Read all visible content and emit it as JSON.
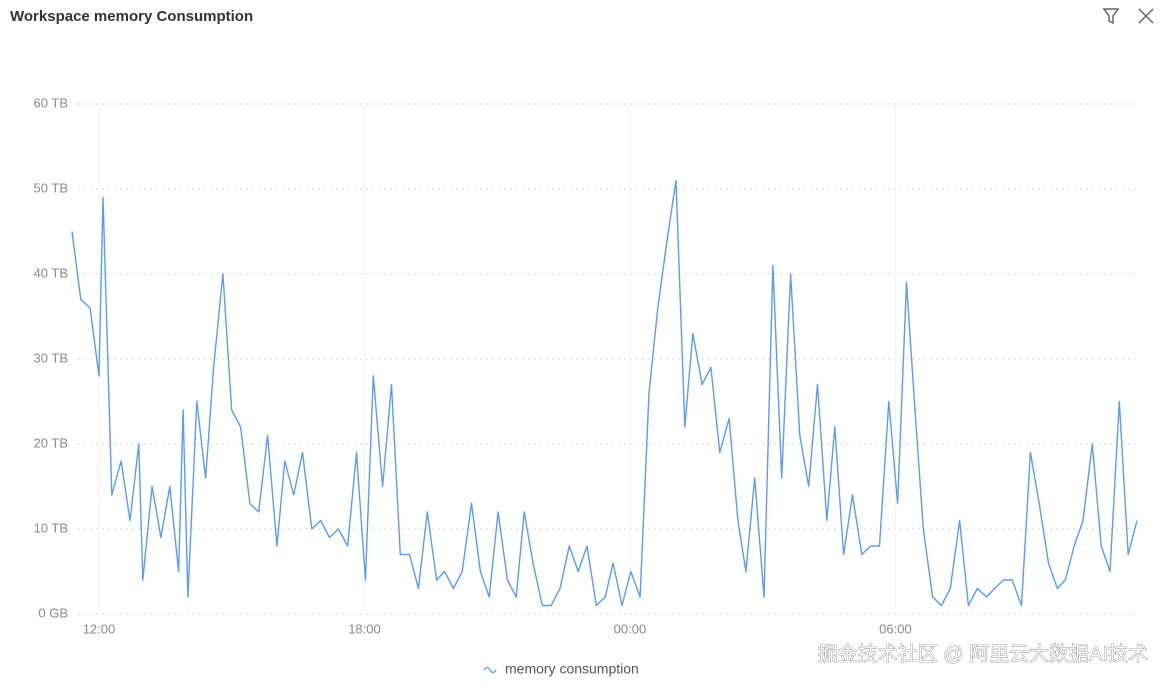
{
  "chart_data": {
    "type": "line",
    "title": "Workspace memory Consumption",
    "watermark": "掘金技术社区 @ 阿里云大数据AI技术",
    "x": [
      11.39,
      11.59,
      11.8,
      12.0,
      12.09,
      12.2,
      12.29,
      12.5,
      12.7,
      12.9,
      12.99,
      13.2,
      13.4,
      13.6,
      13.8,
      13.9,
      14.01,
      14.21,
      14.41,
      14.59,
      14.8,
      15.0,
      15.2,
      15.41,
      15.61,
      15.81,
      16.02,
      16.2,
      16.4,
      16.6,
      16.81,
      17.01,
      17.21,
      17.41,
      17.62,
      17.82,
      18.02,
      18.2,
      18.41,
      18.61,
      18.81,
      19.02,
      19.22,
      19.42,
      19.63,
      19.81,
      20.01,
      20.21,
      20.42,
      20.62,
      20.82,
      21.02,
      21.23,
      21.43,
      21.61,
      21.81,
      22.02,
      22.22,
      22.42,
      22.63,
      22.83,
      23.03,
      23.24,
      23.44,
      23.62,
      23.82,
      24.02,
      24.23,
      24.43,
      24.63,
      24.84,
      25.04,
      25.24,
      25.42,
      25.63,
      25.83,
      26.03,
      26.24,
      26.44,
      26.62,
      26.82,
      27.03,
      27.23,
      27.43,
      27.63,
      27.84,
      28.04,
      28.24,
      28.45,
      28.63,
      28.83,
      29.03,
      29.24,
      29.44,
      29.64,
      29.85,
      30.05,
      30.25,
      30.43,
      30.63,
      30.84,
      31.04,
      31.24,
      31.45,
      31.65,
      31.85,
      32.06,
      32.24,
      32.44,
      32.64,
      32.85,
      33.05,
      33.25,
      33.46,
      33.66,
      33.84,
      34.04,
      34.24,
      34.45,
      34.65,
      34.85,
      35.06,
      35.26,
      35.46
    ],
    "series": [
      {
        "name": "memory consumption",
        "color": "#5b9cf2",
        "values": [
          45,
          37,
          36,
          28,
          49,
          30,
          14,
          18,
          11,
          20,
          4,
          15,
          9,
          15,
          5,
          24,
          2,
          25,
          16,
          29,
          40,
          24,
          22,
          13,
          12,
          21,
          8,
          18,
          14,
          19,
          10,
          11,
          9,
          10,
          8,
          19,
          4,
          28,
          15,
          27,
          7,
          7,
          3,
          12,
          4,
          5,
          3,
          5,
          13,
          5,
          2,
          12,
          4,
          2,
          12,
          6,
          1,
          1,
          3,
          8,
          5,
          8,
          1,
          2,
          6,
          1,
          5,
          2,
          26,
          36,
          44,
          51,
          22,
          33,
          27,
          29,
          19,
          23,
          11,
          5,
          16,
          2,
          41,
          16,
          40,
          21,
          15,
          27,
          11,
          22,
          7,
          14,
          7,
          8,
          8,
          25,
          13,
          39,
          25,
          10,
          2,
          1,
          3,
          11,
          1,
          3,
          2,
          3,
          4,
          4,
          1,
          19,
          13,
          6,
          3,
          4,
          8,
          11,
          20,
          8,
          5,
          25,
          7,
          11
        ]
      }
    ],
    "xlim": [
      11.39,
      35.46
    ],
    "xticks": [
      {
        "value": 12,
        "label": "12:00"
      },
      {
        "value": 18,
        "label": "18:00"
      },
      {
        "value": 24,
        "label": "00:00"
      },
      {
        "value": 30,
        "label": "06:00"
      }
    ],
    "ylim": [
      0,
      60
    ],
    "yticks": [
      {
        "value": 0,
        "label": "0 GB"
      },
      {
        "value": 10,
        "label": "10 TB"
      },
      {
        "value": 20,
        "label": "20 TB"
      },
      {
        "value": 30,
        "label": "30 TB"
      },
      {
        "value": 40,
        "label": "40 TB"
      },
      {
        "value": 50,
        "label": "50 TB"
      },
      {
        "value": 60,
        "label": "60 TB"
      }
    ],
    "grid": true
  }
}
